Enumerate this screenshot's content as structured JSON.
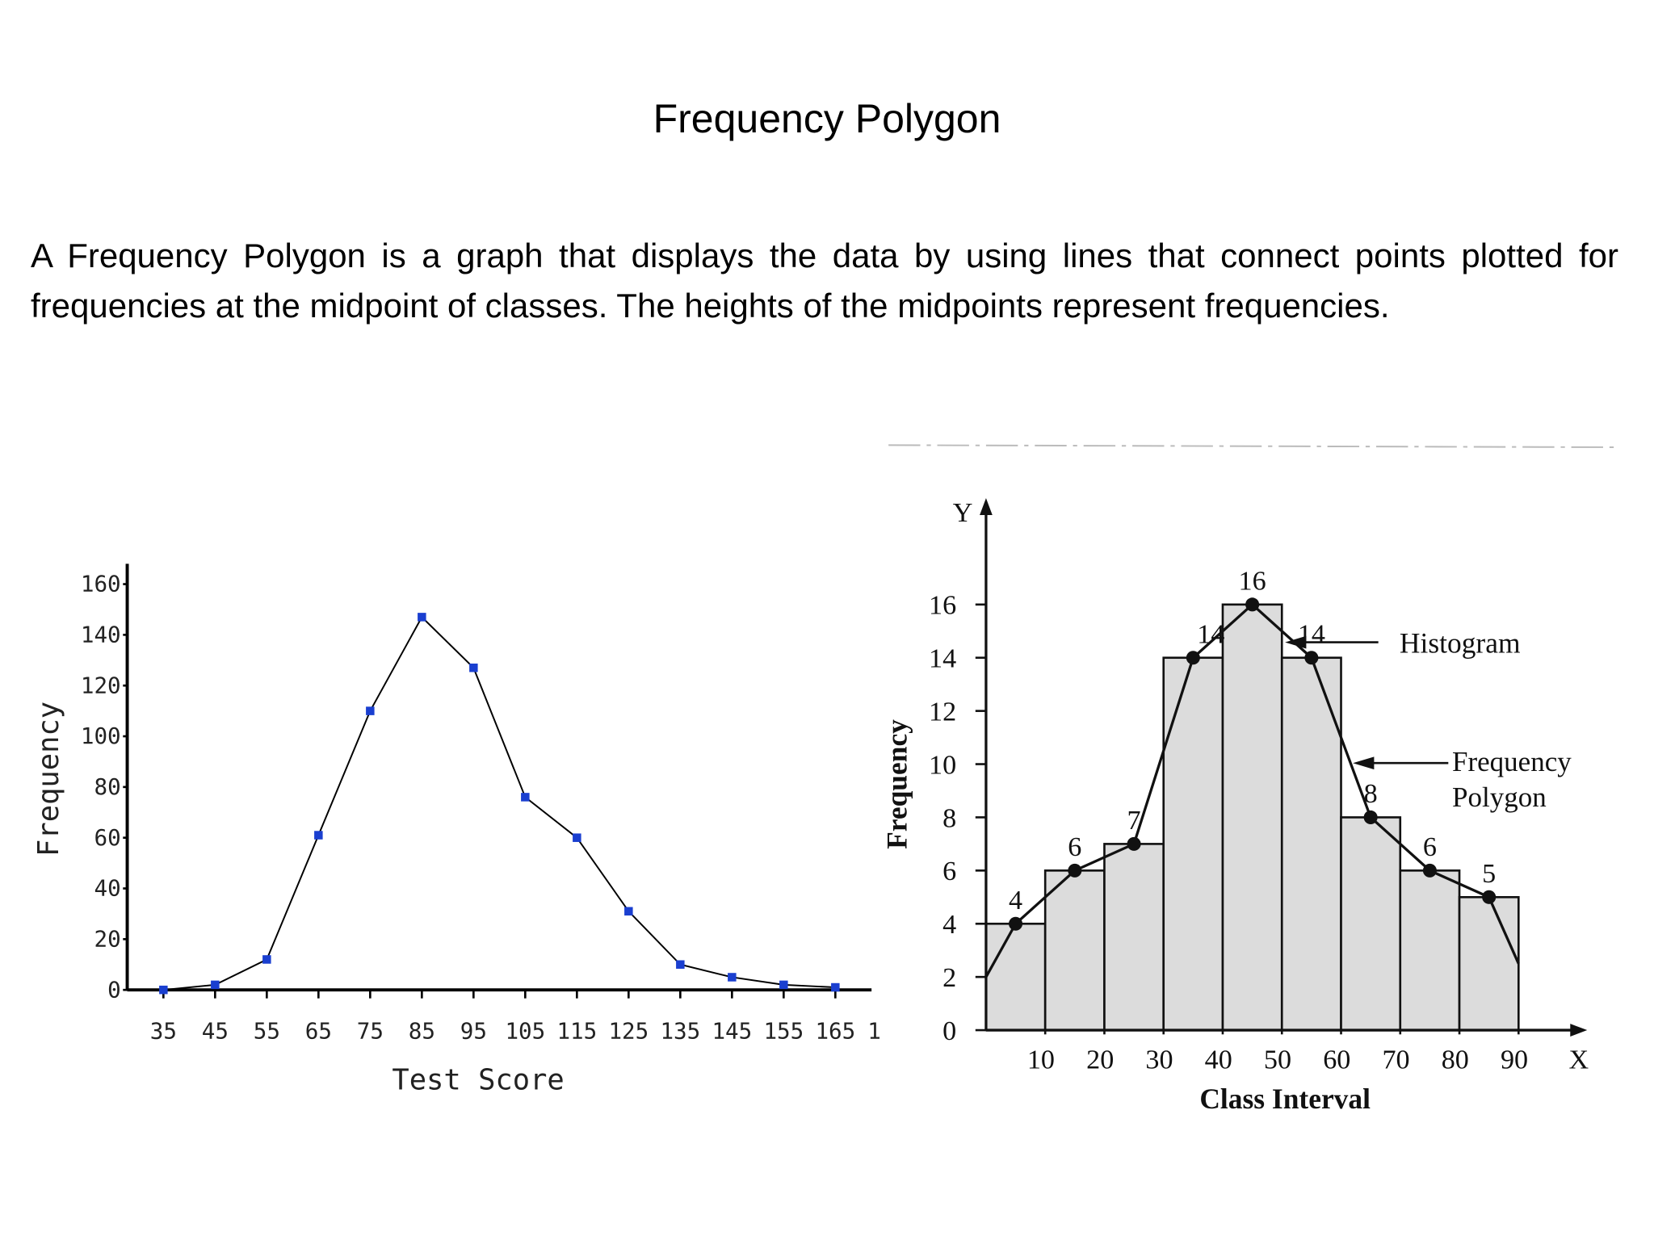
{
  "title": "Frequency Polygon",
  "text": "A Frequency Polygon is a graph that displays the data by using lines that connect points plotted for frequencies at the midpoint of classes.  The heights of the midpoints represent frequencies.",
  "chart_data": [
    {
      "type": "line",
      "x_label": "Test Score",
      "y_label": "Frequency",
      "x": [
        35,
        45,
        55,
        65,
        75,
        85,
        95,
        105,
        115,
        125,
        135,
        145,
        155,
        165
      ],
      "values": [
        0,
        2,
        12,
        61,
        110,
        147,
        127,
        76,
        60,
        31,
        10,
        5,
        2,
        1
      ],
      "color": "#1a3fd0",
      "line_color": "#000000",
      "xlim": [
        28,
        172
      ],
      "xticks": [
        35,
        45,
        55,
        65,
        75,
        85,
        95,
        105,
        115,
        125,
        135,
        145,
        155,
        165,
        {
          "value": 175,
          "label": "1"
        }
      ],
      "ylim": [
        0,
        168
      ],
      "yticks": [
        0,
        20,
        40,
        60,
        80,
        100,
        120,
        140,
        160
      ]
    },
    {
      "type": "histogram",
      "x_label": "Class Interval",
      "y_label": "Frequency",
      "x_axis_name": "X",
      "y_axis_name": "Y",
      "bins": [
        0,
        10,
        20,
        30,
        40,
        50,
        60,
        70,
        80,
        90
      ],
      "values": [
        4,
        6,
        7,
        14,
        16,
        14,
        8,
        6,
        5
      ],
      "color": "#dcdcdc",
      "xlim": [
        0,
        101.6
      ],
      "xticks": [
        10,
        20,
        30,
        40,
        50,
        60,
        70,
        80,
        90
      ],
      "ylim": [
        0,
        20
      ],
      "yticks": [
        0,
        2,
        4,
        6,
        8,
        10,
        12,
        14,
        16
      ],
      "annotations": [
        "Histogram",
        "Frequency Polygon"
      ]
    }
  ]
}
